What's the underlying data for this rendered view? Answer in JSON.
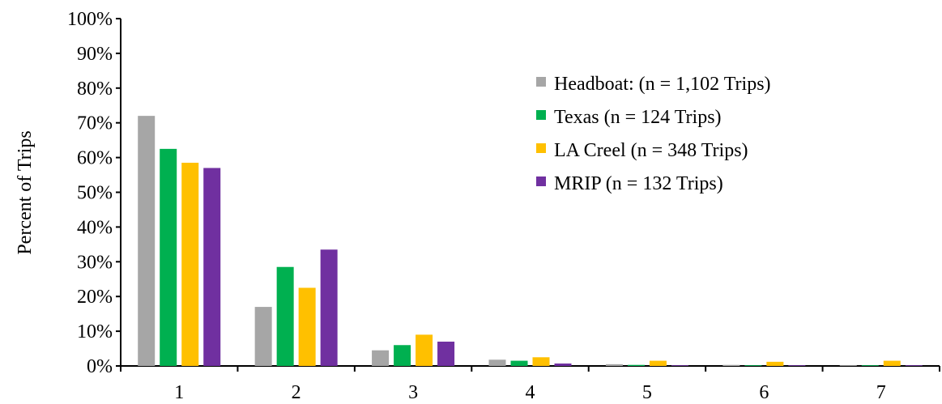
{
  "chart_data": {
    "type": "bar",
    "ylabel": "Percent of Trips",
    "xlabel": "",
    "categories": [
      "1",
      "2",
      "3",
      "4",
      "5",
      "6",
      "7"
    ],
    "ylim": [
      0,
      100
    ],
    "yticks": [
      "0%",
      "10%",
      "20%",
      "30%",
      "40%",
      "50%",
      "60%",
      "70%",
      "80%",
      "90%",
      "100%"
    ],
    "grid": false,
    "legend_position": "top-right",
    "series": [
      {
        "name": "Headboat: (n = 1,102 Trips)",
        "color": "#a6a6a6",
        "values": [
          72.0,
          17.0,
          4.5,
          1.8,
          0.5,
          0.3,
          0.2
        ]
      },
      {
        "name": "Texas (n = 124 Trips)",
        "color": "#00b050",
        "values": [
          62.5,
          28.5,
          6.0,
          1.5,
          0.3,
          0.2,
          0.2
        ]
      },
      {
        "name": "LA Creel (n = 348 Trips)",
        "color": "#ffc000",
        "values": [
          58.5,
          22.5,
          9.0,
          2.5,
          1.5,
          1.2,
          1.5
        ]
      },
      {
        "name": "MRIP (n = 132 Trips)",
        "color": "#7030a0",
        "values": [
          57.0,
          33.5,
          7.0,
          0.7,
          0.2,
          0.2,
          0.2
        ]
      }
    ]
  }
}
